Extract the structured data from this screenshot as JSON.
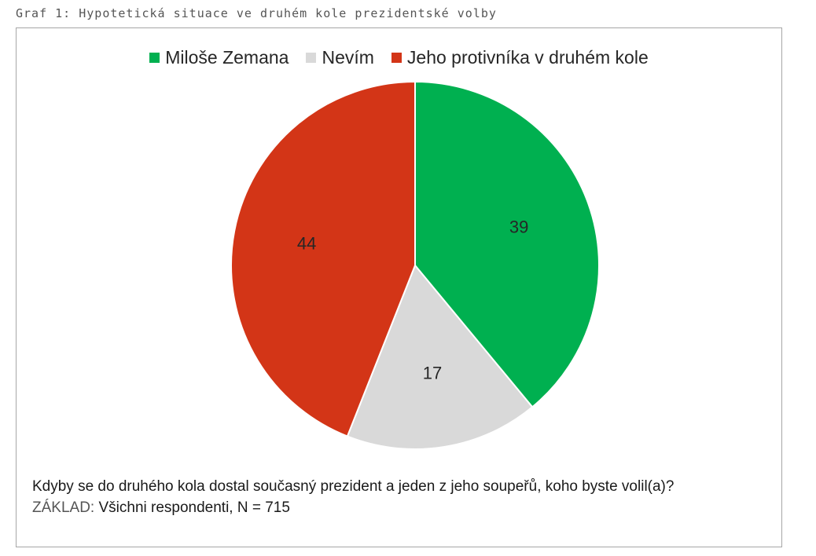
{
  "caption": "Graf 1: Hypotetická situace ve druhém kole prezidentské volby",
  "chart_data": {
    "type": "pie",
    "title": "",
    "legend_placement": "top",
    "slices": [
      {
        "label": "Miloše Zemana",
        "value": 39,
        "color": "#00b050"
      },
      {
        "label": "Nevím",
        "value": 17,
        "color": "#d9d9d9"
      },
      {
        "label": "Jeho protivníka v druhém kole",
        "value": 44,
        "color": "#d33517"
      }
    ]
  },
  "note": {
    "question": "Kdyby se do druhého kola dostal současný prezident a jeden z jeho soupeřů, koho byste volil(a)?",
    "base_label": "ZÁKLAD:",
    "base_value": "Všichni respondenti, N = 715"
  }
}
